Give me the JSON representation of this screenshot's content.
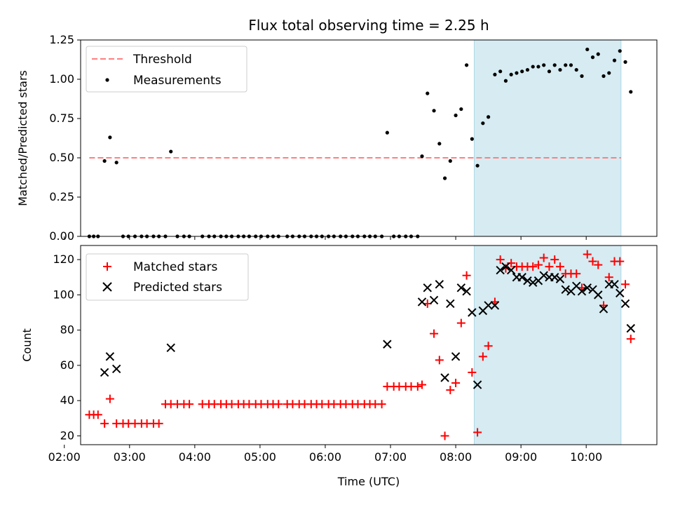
{
  "chart_data": [
    {
      "type": "scatter",
      "title": "Flux total observing time = 2.25 h",
      "xlabel": "",
      "ylabel": "Matched/Predicted stars",
      "ylim": [
        0,
        1.25
      ],
      "yticks": [
        "0.00",
        "0.25",
        "0.50",
        "0.75",
        "1.00",
        "1.25"
      ],
      "shaded_span": [
        "08:17",
        "10:32"
      ],
      "threshold": {
        "name": "Threshold",
        "value": 0.5,
        "x_range": [
          "02:23",
          "10:32"
        ],
        "color": "#ff7f7f",
        "style": "dashed"
      },
      "legend": {
        "position": "top-left",
        "entries": [
          "Threshold",
          "Measurements"
        ]
      },
      "series": [
        {
          "name": "Measurements",
          "color": "#000000",
          "marker": "dot",
          "points": [
            [
              "02:23",
              0
            ],
            [
              "02:27",
              0
            ],
            [
              "02:31",
              0
            ],
            [
              "02:37",
              0.48
            ],
            [
              "02:42",
              0.63
            ],
            [
              "02:48",
              0.47
            ],
            [
              "02:54",
              0
            ],
            [
              "02:59",
              0
            ],
            [
              "03:05",
              0
            ],
            [
              "03:11",
              0
            ],
            [
              "03:16",
              0
            ],
            [
              "03:22",
              0
            ],
            [
              "03:27",
              0
            ],
            [
              "03:33",
              0
            ],
            [
              "03:38",
              0.54
            ],
            [
              "03:44",
              0
            ],
            [
              "03:50",
              0
            ],
            [
              "03:55",
              0
            ],
            [
              "04:07",
              0
            ],
            [
              "04:13",
              0
            ],
            [
              "04:18",
              0
            ],
            [
              "04:24",
              0
            ],
            [
              "04:29",
              0
            ],
            [
              "04:34",
              0
            ],
            [
              "04:40",
              0
            ],
            [
              "04:45",
              0
            ],
            [
              "04:50",
              0
            ],
            [
              "04:56",
              0
            ],
            [
              "05:01",
              0
            ],
            [
              "05:07",
              0
            ],
            [
              "05:12",
              0
            ],
            [
              "05:17",
              0
            ],
            [
              "05:25",
              0
            ],
            [
              "05:30",
              0
            ],
            [
              "05:36",
              0
            ],
            [
              "05:41",
              0
            ],
            [
              "05:47",
              0
            ],
            [
              "05:52",
              0
            ],
            [
              "05:57",
              0
            ],
            [
              "06:03",
              0
            ],
            [
              "06:08",
              0
            ],
            [
              "06:14",
              0
            ],
            [
              "06:19",
              0
            ],
            [
              "06:25",
              0
            ],
            [
              "06:30",
              0
            ],
            [
              "06:36",
              0
            ],
            [
              "06:41",
              0
            ],
            [
              "06:46",
              0
            ],
            [
              "06:52",
              0
            ],
            [
              "06:57",
              0.66
            ],
            [
              "07:03",
              0
            ],
            [
              "07:08",
              0
            ],
            [
              "07:14",
              0
            ],
            [
              "07:19",
              0
            ],
            [
              "07:25",
              0
            ],
            [
              "07:29",
              0.51
            ],
            [
              "07:34",
              0.91
            ],
            [
              "07:40",
              0.8
            ],
            [
              "07:45",
              0.59
            ],
            [
              "07:50",
              0.37
            ],
            [
              "07:55",
              0.48
            ],
            [
              "08:00",
              0.77
            ],
            [
              "08:05",
              0.81
            ],
            [
              "08:10",
              1.09
            ],
            [
              "08:15",
              0.62
            ],
            [
              "08:20",
              0.45
            ],
            [
              "08:25",
              0.72
            ],
            [
              "08:30",
              0.76
            ],
            [
              "08:36",
              1.03
            ],
            [
              "08:41",
              1.05
            ],
            [
              "08:46",
              0.99
            ],
            [
              "08:51",
              1.03
            ],
            [
              "08:56",
              1.04
            ],
            [
              "09:01",
              1.05
            ],
            [
              "09:06",
              1.06
            ],
            [
              "09:11",
              1.08
            ],
            [
              "09:16",
              1.08
            ],
            [
              "09:21",
              1.09
            ],
            [
              "09:26",
              1.05
            ],
            [
              "09:31",
              1.09
            ],
            [
              "09:36",
              1.06
            ],
            [
              "09:41",
              1.09
            ],
            [
              "09:46",
              1.09
            ],
            [
              "09:51",
              1.06
            ],
            [
              "09:56",
              1.02
            ],
            [
              "10:01",
              1.19
            ],
            [
              "10:06",
              1.14
            ],
            [
              "10:11",
              1.16
            ],
            [
              "10:16",
              1.02
            ],
            [
              "10:21",
              1.04
            ],
            [
              "10:26",
              1.12
            ],
            [
              "10:31",
              1.18
            ],
            [
              "10:36",
              1.11
            ],
            [
              "10:41",
              0.92
            ]
          ]
        }
      ]
    },
    {
      "type": "scatter",
      "title": "",
      "xlabel": "Time (UTC)",
      "ylabel": "Count",
      "ylim": [
        15,
        128
      ],
      "yticks": [
        "20",
        "40",
        "60",
        "80",
        "100",
        "120"
      ],
      "xlim": [
        "02:15",
        "11:05"
      ],
      "xticks": [
        "02:00",
        "03:00",
        "04:00",
        "05:00",
        "06:00",
        "07:00",
        "08:00",
        "09:00",
        "10:00"
      ],
      "shaded_span": [
        "08:17",
        "10:32"
      ],
      "legend": {
        "position": "top-left",
        "entries": [
          "Matched stars",
          "Predicted stars"
        ]
      },
      "series": [
        {
          "name": "Matched stars",
          "color": "#ff0000",
          "marker": "plus",
          "points": [
            [
              "02:23",
              32
            ],
            [
              "02:27",
              32
            ],
            [
              "02:31",
              32
            ],
            [
              "02:37",
              27
            ],
            [
              "02:42",
              41
            ],
            [
              "02:48",
              27
            ],
            [
              "02:54",
              27
            ],
            [
              "02:59",
              27
            ],
            [
              "03:05",
              27
            ],
            [
              "03:11",
              27
            ],
            [
              "03:16",
              27
            ],
            [
              "03:22",
              27
            ],
            [
              "03:27",
              27
            ],
            [
              "03:33",
              38
            ],
            [
              "03:38",
              38
            ],
            [
              "03:44",
              38
            ],
            [
              "03:50",
              38
            ],
            [
              "03:55",
              38
            ],
            [
              "04:07",
              38
            ],
            [
              "04:13",
              38
            ],
            [
              "04:18",
              38
            ],
            [
              "04:24",
              38
            ],
            [
              "04:29",
              38
            ],
            [
              "04:34",
              38
            ],
            [
              "04:40",
              38
            ],
            [
              "04:45",
              38
            ],
            [
              "04:50",
              38
            ],
            [
              "04:56",
              38
            ],
            [
              "05:01",
              38
            ],
            [
              "05:07",
              38
            ],
            [
              "05:12",
              38
            ],
            [
              "05:17",
              38
            ],
            [
              "05:25",
              38
            ],
            [
              "05:30",
              38
            ],
            [
              "05:36",
              38
            ],
            [
              "05:41",
              38
            ],
            [
              "05:47",
              38
            ],
            [
              "05:52",
              38
            ],
            [
              "05:57",
              38
            ],
            [
              "06:03",
              38
            ],
            [
              "06:08",
              38
            ],
            [
              "06:14",
              38
            ],
            [
              "06:19",
              38
            ],
            [
              "06:25",
              38
            ],
            [
              "06:30",
              38
            ],
            [
              "06:36",
              38
            ],
            [
              "06:41",
              38
            ],
            [
              "06:46",
              38
            ],
            [
              "06:52",
              38
            ],
            [
              "06:57",
              48
            ],
            [
              "07:03",
              48
            ],
            [
              "07:08",
              48
            ],
            [
              "07:14",
              48
            ],
            [
              "07:19",
              48
            ],
            [
              "07:25",
              48
            ],
            [
              "07:29",
              49
            ],
            [
              "07:34",
              95
            ],
            [
              "07:40",
              78
            ],
            [
              "07:45",
              63
            ],
            [
              "07:50",
              20
            ],
            [
              "07:55",
              46
            ],
            [
              "08:00",
              50
            ],
            [
              "08:05",
              84
            ],
            [
              "08:10",
              111
            ],
            [
              "08:15",
              56
            ],
            [
              "08:20",
              22
            ],
            [
              "08:25",
              65
            ],
            [
              "08:30",
              71
            ],
            [
              "08:36",
              96
            ],
            [
              "08:41",
              120
            ],
            [
              "08:46",
              115
            ],
            [
              "08:51",
              118
            ],
            [
              "08:56",
              116
            ],
            [
              "09:01",
              116
            ],
            [
              "09:06",
              116
            ],
            [
              "09:11",
              116
            ],
            [
              "09:16",
              117
            ],
            [
              "09:21",
              121
            ],
            [
              "09:26",
              116
            ],
            [
              "09:31",
              120
            ],
            [
              "09:36",
              116
            ],
            [
              "09:41",
              112
            ],
            [
              "09:46",
              112
            ],
            [
              "09:51",
              112
            ],
            [
              "09:56",
              104
            ],
            [
              "10:01",
              123
            ],
            [
              "10:06",
              119
            ],
            [
              "10:11",
              117
            ],
            [
              "10:16",
              94
            ],
            [
              "10:21",
              110
            ],
            [
              "10:26",
              119
            ],
            [
              "10:31",
              119
            ],
            [
              "10:36",
              106
            ],
            [
              "10:41",
              75
            ]
          ]
        },
        {
          "name": "Predicted stars",
          "color": "#000000",
          "marker": "x",
          "points": [
            [
              "02:37",
              56
            ],
            [
              "02:42",
              65
            ],
            [
              "02:48",
              58
            ],
            [
              "03:38",
              70
            ],
            [
              "06:57",
              72
            ],
            [
              "07:29",
              96
            ],
            [
              "07:34",
              104
            ],
            [
              "07:40",
              97
            ],
            [
              "07:45",
              106
            ],
            [
              "07:50",
              53
            ],
            [
              "07:55",
              95
            ],
            [
              "08:00",
              65
            ],
            [
              "08:05",
              104
            ],
            [
              "08:10",
              102
            ],
            [
              "08:15",
              90
            ],
            [
              "08:20",
              49
            ],
            [
              "08:25",
              91
            ],
            [
              "08:30",
              94
            ],
            [
              "08:36",
              94
            ],
            [
              "08:41",
              114
            ],
            [
              "08:46",
              116
            ],
            [
              "08:51",
              114
            ],
            [
              "08:56",
              110
            ],
            [
              "09:01",
              110
            ],
            [
              "09:06",
              108
            ],
            [
              "09:11",
              107
            ],
            [
              "09:16",
              108
            ],
            [
              "09:21",
              111
            ],
            [
              "09:26",
              110
            ],
            [
              "09:31",
              110
            ],
            [
              "09:36",
              109
            ],
            [
              "09:41",
              103
            ],
            [
              "09:46",
              102
            ],
            [
              "09:51",
              105
            ],
            [
              "09:56",
              102
            ],
            [
              "10:01",
              104
            ],
            [
              "10:06",
              103
            ],
            [
              "10:11",
              100
            ],
            [
              "10:16",
              92
            ],
            [
              "10:21",
              106
            ],
            [
              "10:26",
              106
            ],
            [
              "10:31",
              101
            ],
            [
              "10:36",
              95
            ],
            [
              "10:41",
              81
            ]
          ]
        }
      ]
    }
  ]
}
